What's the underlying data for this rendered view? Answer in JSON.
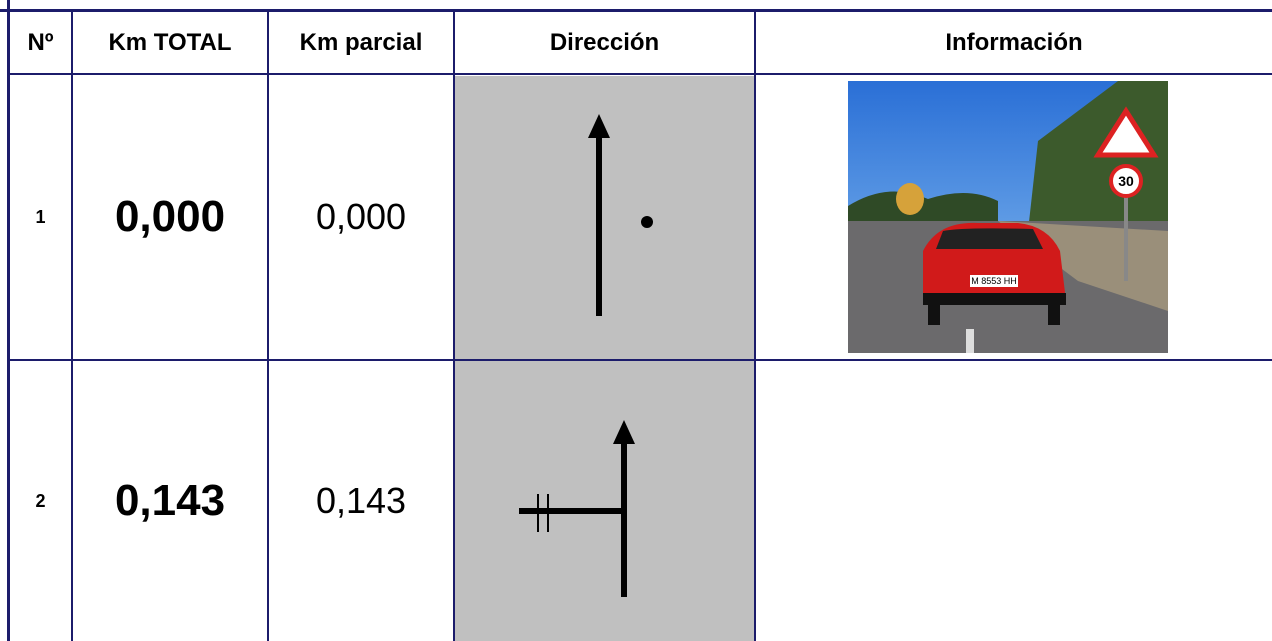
{
  "table": {
    "headers": [
      "Nº",
      "Km TOTAL",
      "Km parcial",
      "Dirección",
      "Información"
    ],
    "rows": [
      {
        "n": "1",
        "km_total": "0,000",
        "km_parcial": "0,000"
      },
      {
        "n": "2",
        "km_total": "0,143",
        "km_parcial": "0,143"
      }
    ]
  },
  "photo": {
    "sign": "30",
    "plate": "M 8553 HH"
  }
}
